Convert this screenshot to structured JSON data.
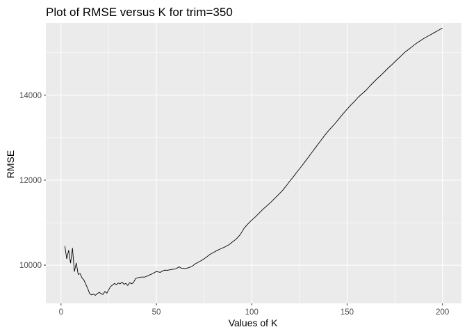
{
  "chart_data": {
    "type": "line",
    "title": "Plot of RMSE versus K for trim=350",
    "xlabel": "Values of K",
    "ylabel": "RMSE",
    "xlim": [
      -7.95,
      209.95
    ],
    "ylim": [
      9100,
      15700
    ],
    "xticks": [
      0,
      50,
      100,
      150,
      200
    ],
    "xtick_labels": [
      "0",
      "50",
      "100",
      "150",
      "200"
    ],
    "yticks": [
      10000,
      12000,
      14000
    ],
    "ytick_labels": [
      "10000",
      "12000",
      "14000"
    ],
    "grid": true,
    "legend": "none",
    "series": [
      {
        "color": "#000000",
        "points": [
          [
            2,
            10450
          ],
          [
            3,
            10150
          ],
          [
            4,
            10350
          ],
          [
            5,
            10050
          ],
          [
            6,
            10400
          ],
          [
            7,
            9850
          ],
          [
            8,
            10050
          ],
          [
            9,
            9780
          ],
          [
            10,
            9800
          ],
          [
            11,
            9700
          ],
          [
            12,
            9650
          ],
          [
            13,
            9550
          ],
          [
            14,
            9450
          ],
          [
            15,
            9330
          ],
          [
            16,
            9300
          ],
          [
            17,
            9320
          ],
          [
            18,
            9290
          ],
          [
            19,
            9330
          ],
          [
            20,
            9360
          ],
          [
            21,
            9330
          ],
          [
            22,
            9310
          ],
          [
            23,
            9380
          ],
          [
            24,
            9340
          ],
          [
            25,
            9420
          ],
          [
            26,
            9500
          ],
          [
            27,
            9530
          ],
          [
            28,
            9570
          ],
          [
            29,
            9540
          ],
          [
            30,
            9580
          ],
          [
            31,
            9560
          ],
          [
            32,
            9600
          ],
          [
            33,
            9550
          ],
          [
            34,
            9570
          ],
          [
            35,
            9520
          ],
          [
            36,
            9590
          ],
          [
            37,
            9560
          ],
          [
            38,
            9590
          ],
          [
            39,
            9680
          ],
          [
            40,
            9700
          ],
          [
            42,
            9720
          ],
          [
            44,
            9720
          ],
          [
            46,
            9760
          ],
          [
            48,
            9800
          ],
          [
            50,
            9850
          ],
          [
            52,
            9830
          ],
          [
            54,
            9880
          ],
          [
            56,
            9880
          ],
          [
            58,
            9900
          ],
          [
            60,
            9910
          ],
          [
            62,
            9960
          ],
          [
            63,
            9930
          ],
          [
            65,
            9920
          ],
          [
            67,
            9940
          ],
          [
            69,
            9980
          ],
          [
            70,
            10020
          ],
          [
            72,
            10070
          ],
          [
            74,
            10120
          ],
          [
            76,
            10180
          ],
          [
            78,
            10250
          ],
          [
            80,
            10300
          ],
          [
            82,
            10350
          ],
          [
            84,
            10390
          ],
          [
            86,
            10430
          ],
          [
            88,
            10480
          ],
          [
            90,
            10550
          ],
          [
            92,
            10620
          ],
          [
            94,
            10720
          ],
          [
            96,
            10870
          ],
          [
            98,
            10970
          ],
          [
            100,
            11060
          ],
          [
            102,
            11140
          ],
          [
            104,
            11230
          ],
          [
            106,
            11320
          ],
          [
            108,
            11400
          ],
          [
            110,
            11480
          ],
          [
            112,
            11570
          ],
          [
            114,
            11660
          ],
          [
            116,
            11750
          ],
          [
            118,
            11860
          ],
          [
            120,
            11980
          ],
          [
            122,
            12090
          ],
          [
            124,
            12210
          ],
          [
            126,
            12320
          ],
          [
            128,
            12440
          ],
          [
            130,
            12560
          ],
          [
            132,
            12680
          ],
          [
            134,
            12800
          ],
          [
            136,
            12920
          ],
          [
            138,
            13040
          ],
          [
            140,
            13150
          ],
          [
            142,
            13250
          ],
          [
            144,
            13350
          ],
          [
            146,
            13460
          ],
          [
            148,
            13570
          ],
          [
            150,
            13670
          ],
          [
            152,
            13770
          ],
          [
            154,
            13860
          ],
          [
            156,
            13960
          ],
          [
            158,
            14040
          ],
          [
            160,
            14120
          ],
          [
            162,
            14220
          ],
          [
            164,
            14310
          ],
          [
            166,
            14400
          ],
          [
            168,
            14480
          ],
          [
            170,
            14570
          ],
          [
            172,
            14660
          ],
          [
            174,
            14740
          ],
          [
            176,
            14830
          ],
          [
            178,
            14910
          ],
          [
            180,
            15000
          ],
          [
            182,
            15070
          ],
          [
            184,
            15140
          ],
          [
            186,
            15210
          ],
          [
            188,
            15270
          ],
          [
            190,
            15330
          ],
          [
            192,
            15380
          ],
          [
            194,
            15430
          ],
          [
            196,
            15480
          ],
          [
            198,
            15530
          ],
          [
            200,
            15580
          ]
        ]
      }
    ]
  }
}
